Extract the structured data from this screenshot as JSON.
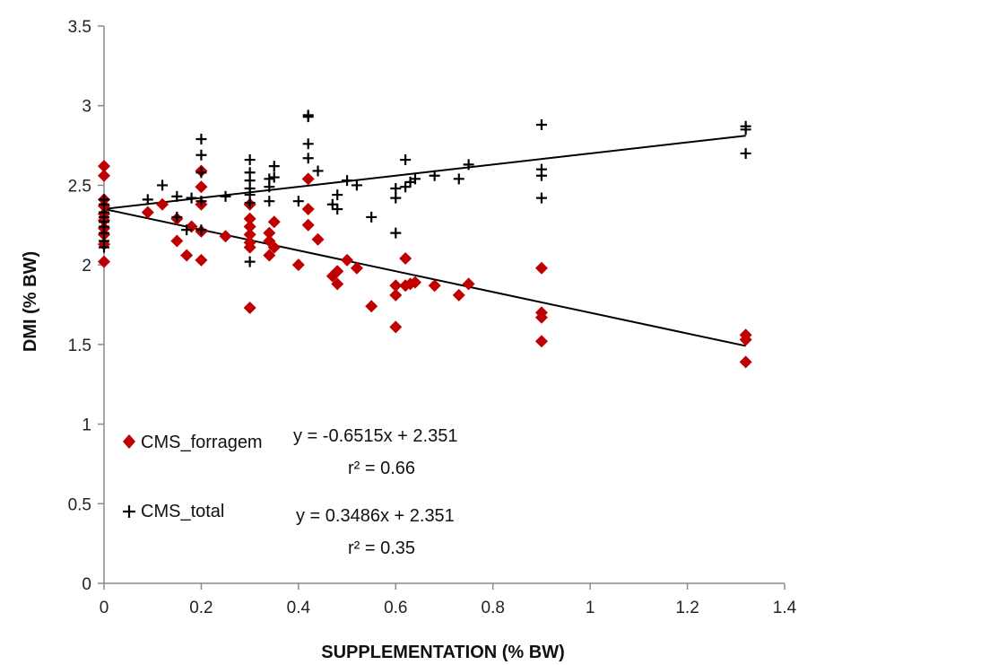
{
  "chart_data": {
    "type": "scatter",
    "xlabel": "SUPPLEMENTATION  (% BW)",
    "ylabel": "DMI (% BW)",
    "xlim": [
      0,
      1.4
    ],
    "ylim": [
      0,
      3.5
    ],
    "x_ticks": [
      "0",
      "0.2",
      "0.4",
      "0.6",
      "0.8",
      "1",
      "1.2",
      "1.4"
    ],
    "y_ticks": [
      "0",
      "0.5",
      "1",
      "1.5",
      "2",
      "2.5",
      "3",
      "3.5"
    ],
    "grid": false,
    "legend_position": "bottom-left",
    "series": [
      {
        "name": "CMS_forragem",
        "marker": "diamond",
        "color": "#c00000",
        "equation": "y = -0.6515x + 2.351",
        "r2": "r² = 0.66",
        "trend": {
          "slope": -0.6515,
          "intercept": 2.351
        },
        "points": [
          [
            0,
            2.62
          ],
          [
            0,
            2.56
          ],
          [
            0,
            2.41
          ],
          [
            0,
            2.37
          ],
          [
            0,
            2.32
          ],
          [
            0,
            2.28
          ],
          [
            0,
            2.23
          ],
          [
            0,
            2.19
          ],
          [
            0,
            2.13
          ],
          [
            0,
            2.02
          ],
          [
            0.09,
            2.33
          ],
          [
            0.12,
            2.38
          ],
          [
            0.15,
            2.29
          ],
          [
            0.15,
            2.15
          ],
          [
            0.17,
            2.06
          ],
          [
            0.18,
            2.24
          ],
          [
            0.2,
            2.59
          ],
          [
            0.2,
            2.49
          ],
          [
            0.2,
            2.38
          ],
          [
            0.2,
            2.21
          ],
          [
            0.2,
            2.03
          ],
          [
            0.25,
            2.18
          ],
          [
            0.3,
            2.38
          ],
          [
            0.3,
            2.29
          ],
          [
            0.3,
            2.24
          ],
          [
            0.3,
            2.19
          ],
          [
            0.3,
            2.14
          ],
          [
            0.3,
            2.11
          ],
          [
            0.3,
            1.73
          ],
          [
            0.34,
            2.2
          ],
          [
            0.34,
            2.15
          ],
          [
            0.34,
            2.06
          ],
          [
            0.35,
            2.27
          ],
          [
            0.35,
            2.11
          ],
          [
            0.4,
            2.0
          ],
          [
            0.42,
            2.54
          ],
          [
            0.42,
            2.35
          ],
          [
            0.42,
            2.25
          ],
          [
            0.44,
            2.16
          ],
          [
            0.47,
            1.93
          ],
          [
            0.48,
            1.96
          ],
          [
            0.48,
            1.88
          ],
          [
            0.5,
            2.03
          ],
          [
            0.52,
            1.98
          ],
          [
            0.55,
            1.74
          ],
          [
            0.6,
            1.87
          ],
          [
            0.6,
            1.81
          ],
          [
            0.6,
            1.61
          ],
          [
            0.62,
            2.04
          ],
          [
            0.62,
            1.87
          ],
          [
            0.63,
            1.88
          ],
          [
            0.64,
            1.89
          ],
          [
            0.68,
            1.87
          ],
          [
            0.73,
            1.81
          ],
          [
            0.75,
            1.88
          ],
          [
            0.9,
            1.98
          ],
          [
            0.9,
            1.7
          ],
          [
            0.9,
            1.67
          ],
          [
            0.9,
            1.52
          ],
          [
            1.32,
            1.56
          ],
          [
            1.32,
            1.53
          ],
          [
            1.32,
            1.39
          ]
        ]
      },
      {
        "name": "CMS_total",
        "marker": "plus",
        "color": "#000000",
        "equation": "y = 0.3486x + 2.351",
        "r2": "r² = 0.35",
        "trend": {
          "slope": 0.3486,
          "intercept": 2.351
        },
        "points": [
          [
            0,
            2.41
          ],
          [
            0,
            2.38
          ],
          [
            0,
            2.33
          ],
          [
            0,
            2.3
          ],
          [
            0,
            2.27
          ],
          [
            0,
            2.24
          ],
          [
            0,
            2.2
          ],
          [
            0,
            2.15
          ],
          [
            0,
            2.11
          ],
          [
            0.09,
            2.41
          ],
          [
            0.12,
            2.5
          ],
          [
            0.15,
            2.43
          ],
          [
            0.15,
            2.3
          ],
          [
            0.17,
            2.22
          ],
          [
            0.18,
            2.42
          ],
          [
            0.2,
            2.79
          ],
          [
            0.2,
            2.69
          ],
          [
            0.2,
            2.58
          ],
          [
            0.2,
            2.4
          ],
          [
            0.2,
            2.22
          ],
          [
            0.25,
            2.43
          ],
          [
            0.3,
            2.66
          ],
          [
            0.3,
            2.58
          ],
          [
            0.3,
            2.53
          ],
          [
            0.3,
            2.48
          ],
          [
            0.3,
            2.44
          ],
          [
            0.3,
            2.39
          ],
          [
            0.3,
            2.02
          ],
          [
            0.34,
            2.54
          ],
          [
            0.34,
            2.49
          ],
          [
            0.34,
            2.4
          ],
          [
            0.35,
            2.62
          ],
          [
            0.35,
            2.55
          ],
          [
            0.4,
            2.4
          ],
          [
            0.42,
            2.94
          ],
          [
            0.42,
            2.93
          ],
          [
            0.42,
            2.76
          ],
          [
            0.42,
            2.67
          ],
          [
            0.44,
            2.59
          ],
          [
            0.47,
            2.38
          ],
          [
            0.48,
            2.44
          ],
          [
            0.48,
            2.35
          ],
          [
            0.5,
            2.53
          ],
          [
            0.52,
            2.5
          ],
          [
            0.55,
            2.3
          ],
          [
            0.6,
            2.48
          ],
          [
            0.6,
            2.42
          ],
          [
            0.6,
            2.2
          ],
          [
            0.62,
            2.66
          ],
          [
            0.62,
            2.49
          ],
          [
            0.63,
            2.52
          ],
          [
            0.64,
            2.54
          ],
          [
            0.68,
            2.56
          ],
          [
            0.73,
            2.54
          ],
          [
            0.75,
            2.63
          ],
          [
            0.9,
            2.88
          ],
          [
            0.9,
            2.6
          ],
          [
            0.9,
            2.56
          ],
          [
            0.9,
            2.42
          ],
          [
            1.32,
            2.87
          ],
          [
            1.32,
            2.85
          ],
          [
            1.32,
            2.7
          ]
        ]
      }
    ]
  }
}
